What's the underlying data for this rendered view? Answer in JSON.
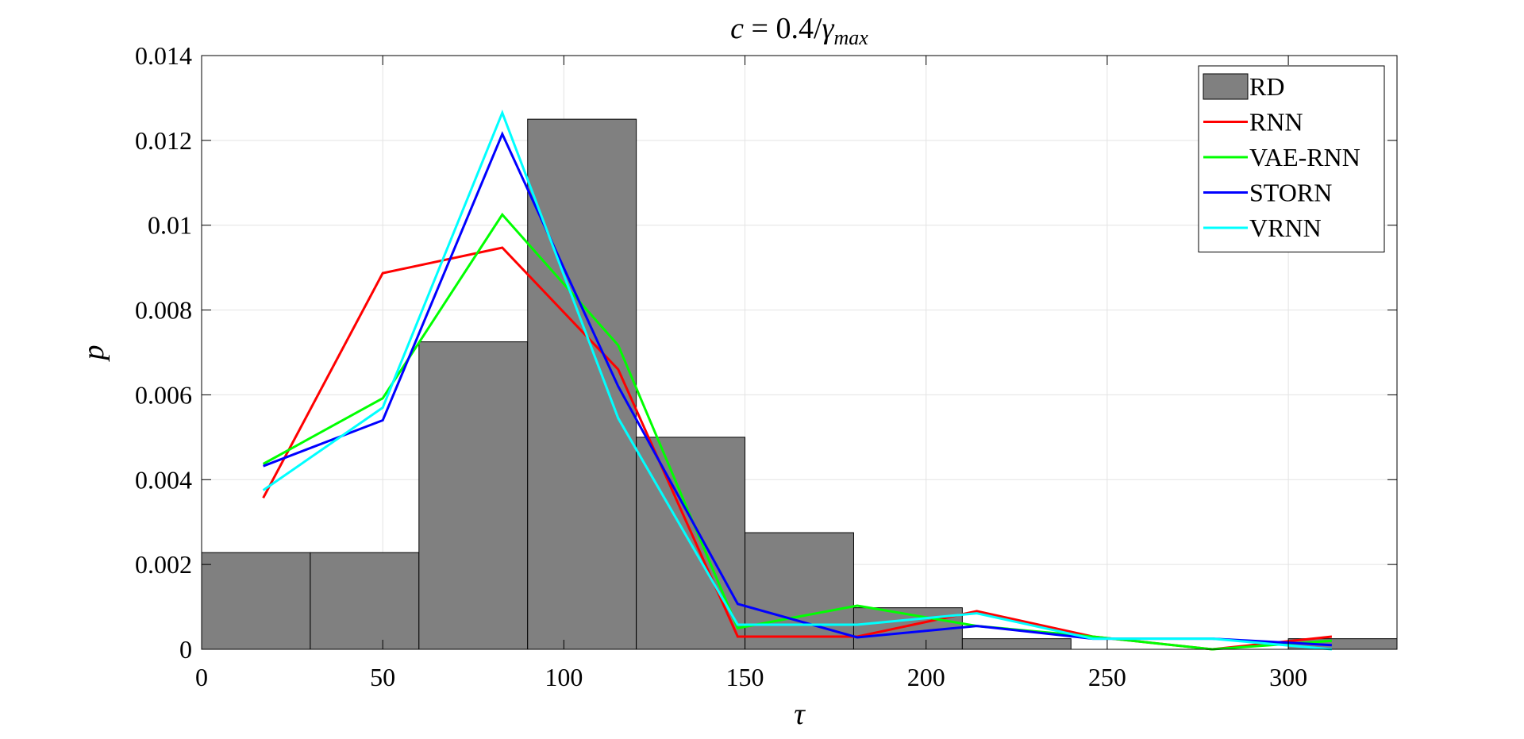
{
  "chart_data": {
    "type": "bar",
    "title_parts": {
      "lhs": "c",
      "eq": " = 0.4/",
      "gamma": "γ",
      "sub": "max"
    },
    "xlabel": "τ",
    "ylabel": "p",
    "xlim": [
      0,
      330
    ],
    "ylim": [
      0,
      0.014
    ],
    "xticks": [
      0,
      50,
      100,
      150,
      200,
      250,
      300
    ],
    "xtick_labels": [
      "0",
      "50",
      "100",
      "150",
      "200",
      "250",
      "300"
    ],
    "yticks": [
      0,
      0.002,
      0.004,
      0.006,
      0.008,
      0.01,
      0.012,
      0.014
    ],
    "ytick_labels": [
      "0",
      "0.002",
      "0.004",
      "0.006",
      "0.008",
      "0.01",
      "0.012",
      "0.014"
    ],
    "grid": true,
    "legend_position": "top-right",
    "histogram": {
      "name": "RD",
      "color": "#808080",
      "bin_edges": [
        0,
        30,
        60,
        90,
        120,
        150,
        180,
        210,
        240,
        270,
        300,
        330
      ],
      "values": [
        0.00228,
        0.00228,
        0.00725,
        0.0125,
        0.005,
        0.00275,
        0.00098,
        0.00025,
        0,
        0,
        0.00025
      ]
    },
    "series": [
      {
        "name": "RNN",
        "color": "#ff0000",
        "x": [
          17,
          50,
          83,
          115,
          148,
          181,
          214,
          246,
          279,
          312
        ],
        "y": [
          0.00357,
          0.00887,
          0.00947,
          0.0066,
          0.0003,
          0.0003,
          0.0009,
          0.0003,
          0.0,
          0.0003
        ]
      },
      {
        "name": "VAE-RNN",
        "color": "#00ff00",
        "x": [
          17,
          50,
          83,
          115,
          148,
          181,
          214,
          246,
          279,
          312
        ],
        "y": [
          0.00437,
          0.00592,
          0.01025,
          0.00717,
          0.0005,
          0.00103,
          0.00055,
          0.0003,
          0.0,
          0.0002
        ]
      },
      {
        "name": "STORN",
        "color": "#0000ff",
        "x": [
          17,
          50,
          83,
          115,
          148,
          181,
          214,
          246,
          279,
          312
        ],
        "y": [
          0.00432,
          0.0054,
          0.01215,
          0.0062,
          0.00107,
          0.00028,
          0.00055,
          0.00025,
          0.00025,
          0.0001
        ]
      },
      {
        "name": "VRNN",
        "color": "#00ffff",
        "x": [
          17,
          50,
          83,
          115,
          148,
          181,
          214,
          246,
          279,
          312
        ],
        "y": [
          0.00375,
          0.0057,
          0.01265,
          0.00545,
          0.00058,
          0.00058,
          0.00085,
          0.00025,
          0.00025,
          0.0
        ]
      }
    ]
  }
}
